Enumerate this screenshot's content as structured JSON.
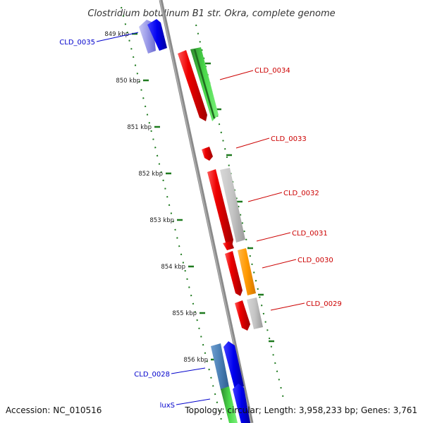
{
  "title": "Clostridium botulinum B1 str. Okra, complete genome",
  "accession_text": "Accession: NC_010516",
  "topology_text": "Topology: circular; Length: 3,958,233 bp; Genes: 3,761",
  "colors": {
    "backbone": "#8a8a8a",
    "tick": "#1e7a1e",
    "label_red": "#cc0000",
    "label_blue": "#0000cc",
    "red_feature": "#e00000",
    "green_feature": "#33cc33",
    "gray_feature": "#c0c0c0",
    "orange_feature": "#ff9900",
    "blue_feature": "#0000ee",
    "steel_feature": "#4a7fb5",
    "lavender_feature": "#8080e0"
  },
  "kbp_labels": [
    "849 kbp",
    "850 kbp",
    "851 kbp",
    "852 kbp",
    "853 kbp",
    "854 kbp",
    "855 kbp",
    "856 kbp"
  ],
  "gene_labels": [
    {
      "name": "CLD_0035",
      "color": "blue"
    },
    {
      "name": "CLD_0034",
      "color": "red"
    },
    {
      "name": "CLD_0033",
      "color": "red"
    },
    {
      "name": "CLD_0032",
      "color": "red"
    },
    {
      "name": "CLD_0031",
      "color": "red"
    },
    {
      "name": "CLD_0030",
      "color": "red"
    },
    {
      "name": "CLD_0029",
      "color": "red"
    },
    {
      "name": "CLD_0028",
      "color": "blue"
    },
    {
      "name": "luxS",
      "color": "blue"
    }
  ]
}
